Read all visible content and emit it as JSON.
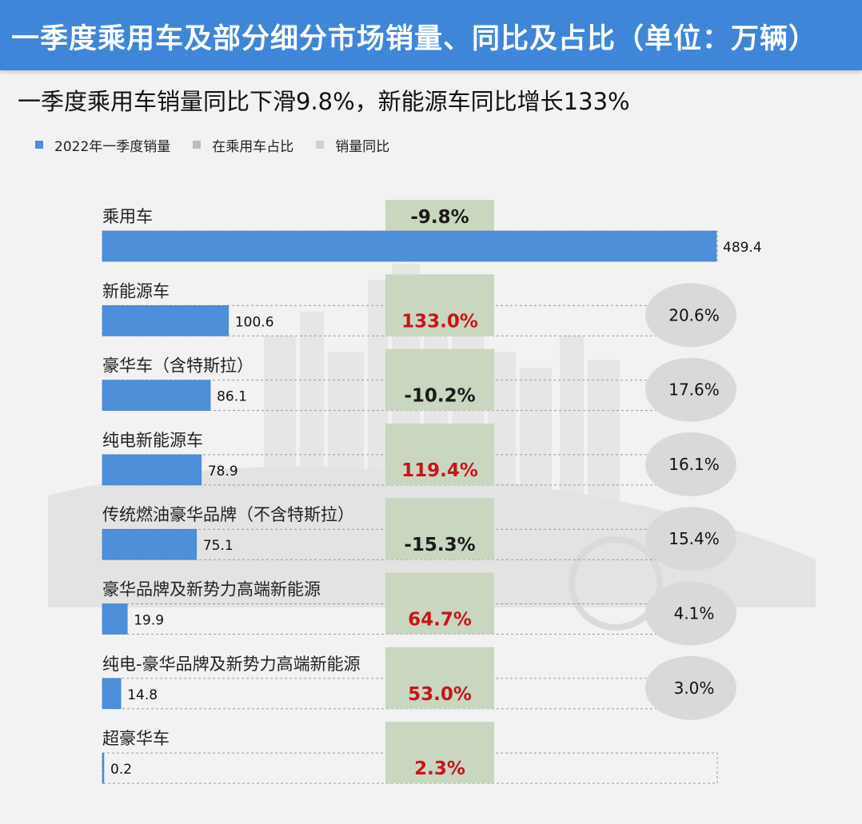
{
  "header": {
    "title": "一季度乘用车及部分细分市场销量、同比及占比（单位：万辆）"
  },
  "subtitle": "一季度乘用车销量同比下滑9.8%，新能源车同比增长133%",
  "legend": [
    {
      "label": "2022年一季度销量",
      "color": "#4d8fd9"
    },
    {
      "label": "在乘用车占比",
      "color": "#bdbdbd"
    },
    {
      "label": "销量同比",
      "color": "#c9d7c0"
    }
  ],
  "colors": {
    "bar": "#4d8fd9",
    "yoy_box": "#c9d7c0",
    "share_ellipse": "#d9d9d9",
    "negative_text": "#1a1a1a",
    "positive_text": "#c8141a"
  },
  "chart_data": {
    "type": "bar",
    "orientation": "horizontal",
    "categories": [
      "乘用车",
      "新能源车",
      "豪华车（含特斯拉）",
      "纯电新能源车",
      "传统燃油豪华品牌（不含特斯拉）",
      "豪华品牌及新势力高端新能源",
      "纯电-豪华品牌及新势力高端新能源",
      "超豪华车"
    ],
    "series": [
      {
        "name": "2022年一季度销量",
        "values": [
          489.4,
          100.6,
          86.1,
          78.9,
          75.1,
          19.9,
          14.8,
          0.2
        ],
        "labels": [
          "489.4",
          "100.6",
          "86.1",
          "78.9",
          "75.1",
          "19.9",
          "14.8",
          "0.2"
        ]
      },
      {
        "name": "销量同比",
        "values": [
          -9.8,
          133.0,
          -10.2,
          119.4,
          -15.3,
          64.7,
          53.0,
          2.3
        ],
        "labels": [
          "-9.8%",
          "133.0%",
          "-10.2%",
          "119.4%",
          "-15.3%",
          "64.7%",
          "53.0%",
          "2.3%"
        ]
      },
      {
        "name": "在乘用车占比",
        "values": [
          null,
          20.6,
          17.6,
          16.1,
          15.4,
          4.1,
          3.0,
          null
        ],
        "labels": [
          null,
          "20.6%",
          "17.6%",
          "16.1%",
          "15.4%",
          "4.1%",
          "3.0%",
          null
        ]
      }
    ],
    "xlim": [
      0,
      489.4
    ],
    "unit": "万辆"
  }
}
